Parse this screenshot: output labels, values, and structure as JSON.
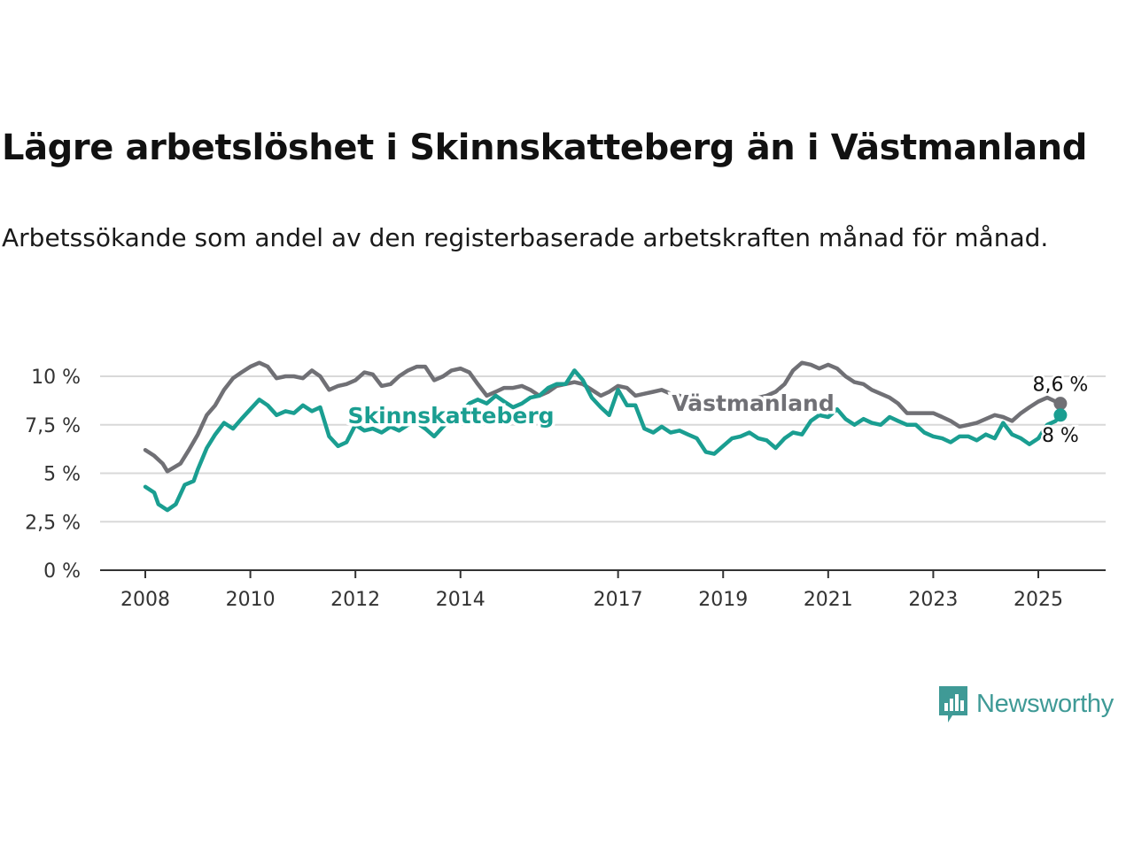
{
  "title": "Lägre arbetslöshet i Skinnskatteberg än i Västmanland",
  "subtitle": "Arbetssökande som andel av den registerbaserade arbetskraften månad för månad.",
  "brand": {
    "name": "Newsworthy",
    "color": "#3f9a96"
  },
  "chart_data": {
    "type": "line",
    "title": "Lägre arbetslöshet i Skinnskatteberg än i Västmanland",
    "subtitle": "Arbetssökande som andel av den registerbaserade arbetskraften månad för månad.",
    "xlabel": "",
    "ylabel": "",
    "xlim": [
      2007.9,
      2026.3
    ],
    "ylim": [
      0,
      10
    ],
    "y_ticks": [
      {
        "value": 0,
        "label": "0 %"
      },
      {
        "value": 2.5,
        "label": "2,5 %"
      },
      {
        "value": 5,
        "label": "5 %"
      },
      {
        "value": 7.5,
        "label": "7,5 %"
      },
      {
        "value": 10,
        "label": "10 %"
      }
    ],
    "x_ticks": [
      {
        "value": 2008,
        "label": "2008"
      },
      {
        "value": 2010,
        "label": "2010"
      },
      {
        "value": 2012,
        "label": "2012"
      },
      {
        "value": 2014,
        "label": "2014"
      },
      {
        "value": 2017,
        "label": "2017"
      },
      {
        "value": 2019,
        "label": "2019"
      },
      {
        "value": 2021,
        "label": "2021"
      },
      {
        "value": 2023,
        "label": "2023"
      },
      {
        "value": 2025,
        "label": "2025"
      }
    ],
    "grid": true,
    "legend": "inline labels",
    "series": [
      {
        "name": "Västmanland",
        "color": "#707075",
        "end_label": "8,6 %",
        "points": [
          [
            2008.0,
            6.2
          ],
          [
            2008.17,
            5.9
          ],
          [
            2008.33,
            5.5
          ],
          [
            2008.42,
            5.1
          ],
          [
            2008.67,
            5.5
          ],
          [
            2008.83,
            6.2
          ],
          [
            2009.0,
            7.0
          ],
          [
            2009.17,
            8.0
          ],
          [
            2009.33,
            8.5
          ],
          [
            2009.5,
            9.3
          ],
          [
            2009.67,
            9.9
          ],
          [
            2009.83,
            10.2
          ],
          [
            2010.0,
            10.5
          ],
          [
            2010.17,
            10.7
          ],
          [
            2010.33,
            10.5
          ],
          [
            2010.5,
            9.9
          ],
          [
            2010.67,
            10.0
          ],
          [
            2010.83,
            10.0
          ],
          [
            2011.0,
            9.9
          ],
          [
            2011.17,
            10.3
          ],
          [
            2011.33,
            10.0
          ],
          [
            2011.5,
            9.3
          ],
          [
            2011.67,
            9.5
          ],
          [
            2011.83,
            9.6
          ],
          [
            2012.0,
            9.8
          ],
          [
            2012.17,
            10.2
          ],
          [
            2012.33,
            10.1
          ],
          [
            2012.5,
            9.5
          ],
          [
            2012.67,
            9.6
          ],
          [
            2012.83,
            10.0
          ],
          [
            2013.0,
            10.3
          ],
          [
            2013.17,
            10.5
          ],
          [
            2013.33,
            10.5
          ],
          [
            2013.5,
            9.8
          ],
          [
            2013.67,
            10.0
          ],
          [
            2013.83,
            10.3
          ],
          [
            2014.0,
            10.4
          ],
          [
            2014.17,
            10.2
          ],
          [
            2014.33,
            9.6
          ],
          [
            2014.5,
            9.0
          ],
          [
            2014.67,
            9.2
          ],
          [
            2014.83,
            9.4
          ],
          [
            2015.0,
            9.4
          ],
          [
            2015.17,
            9.5
          ],
          [
            2015.33,
            9.3
          ],
          [
            2015.5,
            9.0
          ],
          [
            2015.67,
            9.2
          ],
          [
            2015.83,
            9.5
          ],
          [
            2016.0,
            9.6
          ],
          [
            2016.17,
            9.7
          ],
          [
            2016.33,
            9.6
          ],
          [
            2016.5,
            9.3
          ],
          [
            2016.67,
            9.0
          ],
          [
            2016.83,
            9.2
          ],
          [
            2017.0,
            9.5
          ],
          [
            2017.17,
            9.4
          ],
          [
            2017.33,
            9.0
          ],
          [
            2017.5,
            9.1
          ],
          [
            2017.67,
            9.2
          ],
          [
            2017.83,
            9.3
          ],
          [
            2018.0,
            9.1
          ],
          [
            2018.17,
            9.0
          ],
          [
            2018.33,
            8.8
          ],
          [
            2018.5,
            8.6
          ],
          [
            2018.67,
            8.4
          ],
          [
            2018.83,
            8.4
          ],
          [
            2019.0,
            8.5
          ],
          [
            2019.17,
            8.6
          ],
          [
            2019.33,
            8.6
          ],
          [
            2019.5,
            8.8
          ],
          [
            2019.67,
            8.9
          ],
          [
            2019.83,
            9.0
          ],
          [
            2020.0,
            9.2
          ],
          [
            2020.17,
            9.6
          ],
          [
            2020.33,
            10.3
          ],
          [
            2020.5,
            10.7
          ],
          [
            2020.67,
            10.6
          ],
          [
            2020.83,
            10.4
          ],
          [
            2021.0,
            10.6
          ],
          [
            2021.17,
            10.4
          ],
          [
            2021.33,
            10.0
          ],
          [
            2021.5,
            9.7
          ],
          [
            2021.67,
            9.6
          ],
          [
            2021.83,
            9.3
          ],
          [
            2022.0,
            9.1
          ],
          [
            2022.17,
            8.9
          ],
          [
            2022.33,
            8.6
          ],
          [
            2022.5,
            8.1
          ],
          [
            2022.67,
            8.1
          ],
          [
            2022.83,
            8.1
          ],
          [
            2023.0,
            8.1
          ],
          [
            2023.17,
            7.9
          ],
          [
            2023.33,
            7.7
          ],
          [
            2023.5,
            7.4
          ],
          [
            2023.67,
            7.5
          ],
          [
            2023.83,
            7.6
          ],
          [
            2024.0,
            7.8
          ],
          [
            2024.17,
            8.0
          ],
          [
            2024.33,
            7.9
          ],
          [
            2024.5,
            7.7
          ],
          [
            2024.67,
            8.1
          ],
          [
            2024.83,
            8.4
          ],
          [
            2025.0,
            8.7
          ],
          [
            2025.17,
            8.9
          ],
          [
            2025.33,
            8.7
          ],
          [
            2025.42,
            8.6
          ]
        ]
      },
      {
        "name": "Skinnskatteberg",
        "color": "#1a9e91",
        "end_label": "8 %",
        "points": [
          [
            2008.0,
            4.3
          ],
          [
            2008.17,
            4.0
          ],
          [
            2008.25,
            3.4
          ],
          [
            2008.42,
            3.1
          ],
          [
            2008.58,
            3.4
          ],
          [
            2008.75,
            4.4
          ],
          [
            2008.92,
            4.6
          ],
          [
            2009.0,
            5.2
          ],
          [
            2009.17,
            6.3
          ],
          [
            2009.33,
            7.0
          ],
          [
            2009.5,
            7.6
          ],
          [
            2009.67,
            7.3
          ],
          [
            2009.83,
            7.8
          ],
          [
            2010.0,
            8.3
          ],
          [
            2010.17,
            8.8
          ],
          [
            2010.33,
            8.5
          ],
          [
            2010.5,
            8.0
          ],
          [
            2010.67,
            8.2
          ],
          [
            2010.83,
            8.1
          ],
          [
            2011.0,
            8.5
          ],
          [
            2011.17,
            8.2
          ],
          [
            2011.33,
            8.4
          ],
          [
            2011.5,
            6.9
          ],
          [
            2011.67,
            6.4
          ],
          [
            2011.83,
            6.6
          ],
          [
            2012.0,
            7.5
          ],
          [
            2012.17,
            7.2
          ],
          [
            2012.33,
            7.3
          ],
          [
            2012.5,
            7.1
          ],
          [
            2012.67,
            7.4
          ],
          [
            2012.83,
            7.2
          ],
          [
            2013.0,
            7.5
          ],
          [
            2013.17,
            7.6
          ],
          [
            2013.33,
            7.3
          ],
          [
            2013.5,
            6.9
          ],
          [
            2013.67,
            7.4
          ],
          [
            2013.83,
            7.8
          ],
          [
            2014.0,
            8.1
          ],
          [
            2014.17,
            8.6
          ],
          [
            2014.33,
            8.8
          ],
          [
            2014.5,
            8.6
          ],
          [
            2014.67,
            9.0
          ],
          [
            2014.83,
            8.7
          ],
          [
            2015.0,
            8.4
          ],
          [
            2015.17,
            8.6
          ],
          [
            2015.33,
            8.9
          ],
          [
            2015.5,
            9.0
          ],
          [
            2015.67,
            9.4
          ],
          [
            2015.83,
            9.6
          ],
          [
            2016.0,
            9.6
          ],
          [
            2016.17,
            10.3
          ],
          [
            2016.33,
            9.8
          ],
          [
            2016.5,
            8.9
          ],
          [
            2016.67,
            8.4
          ],
          [
            2016.83,
            8.0
          ],
          [
            2017.0,
            9.3
          ],
          [
            2017.17,
            8.5
          ],
          [
            2017.33,
            8.5
          ],
          [
            2017.5,
            7.3
          ],
          [
            2017.67,
            7.1
          ],
          [
            2017.83,
            7.4
          ],
          [
            2018.0,
            7.1
          ],
          [
            2018.17,
            7.2
          ],
          [
            2018.33,
            7.0
          ],
          [
            2018.5,
            6.8
          ],
          [
            2018.67,
            6.1
          ],
          [
            2018.83,
            6.0
          ],
          [
            2019.0,
            6.4
          ],
          [
            2019.17,
            6.8
          ],
          [
            2019.33,
            6.9
          ],
          [
            2019.5,
            7.1
          ],
          [
            2019.67,
            6.8
          ],
          [
            2019.83,
            6.7
          ],
          [
            2020.0,
            6.3
          ],
          [
            2020.17,
            6.8
          ],
          [
            2020.33,
            7.1
          ],
          [
            2020.5,
            7.0
          ],
          [
            2020.67,
            7.7
          ],
          [
            2020.83,
            8.0
          ],
          [
            2021.0,
            7.9
          ],
          [
            2021.17,
            8.3
          ],
          [
            2021.33,
            7.8
          ],
          [
            2021.5,
            7.5
          ],
          [
            2021.67,
            7.8
          ],
          [
            2021.83,
            7.6
          ],
          [
            2022.0,
            7.5
          ],
          [
            2022.17,
            7.9
          ],
          [
            2022.33,
            7.7
          ],
          [
            2022.5,
            7.5
          ],
          [
            2022.67,
            7.5
          ],
          [
            2022.83,
            7.1
          ],
          [
            2023.0,
            6.9
          ],
          [
            2023.17,
            6.8
          ],
          [
            2023.33,
            6.6
          ],
          [
            2023.5,
            6.9
          ],
          [
            2023.67,
            6.9
          ],
          [
            2023.83,
            6.7
          ],
          [
            2024.0,
            7.0
          ],
          [
            2024.17,
            6.8
          ],
          [
            2024.33,
            7.6
          ],
          [
            2024.5,
            7.0
          ],
          [
            2024.67,
            6.8
          ],
          [
            2024.83,
            6.5
          ],
          [
            2025.0,
            6.8
          ],
          [
            2025.17,
            7.5
          ],
          [
            2025.33,
            7.7
          ],
          [
            2025.42,
            8.0
          ]
        ]
      }
    ]
  }
}
